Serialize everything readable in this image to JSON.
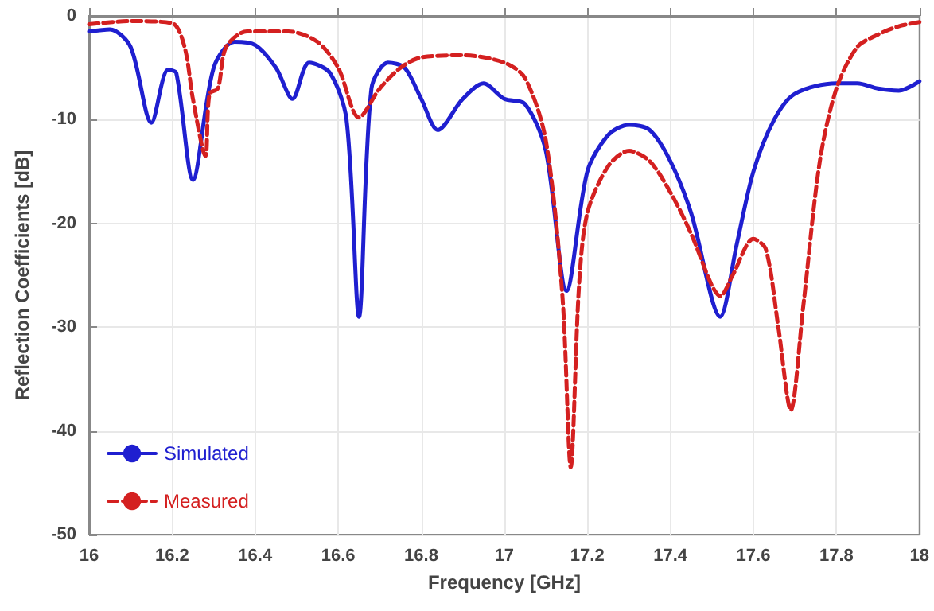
{
  "chart_data": {
    "type": "line",
    "xlabel": "Frequency [GHz]",
    "ylabel": "Reflection Coefficients [dB]",
    "xlim": [
      16,
      18
    ],
    "xticks": [
      16,
      16.2,
      16.4,
      16.6,
      16.8,
      17,
      17.2,
      17.4,
      17.6,
      17.8,
      18
    ],
    "ylim": [
      -50,
      0
    ],
    "yticks": [
      -50,
      -40,
      -30,
      -20,
      -10,
      0
    ],
    "grid": true,
    "legend": "bottom left",
    "marker": "none",
    "series": [
      {
        "name": "Simulated",
        "color": "#1f1fd0",
        "line_style": "solid",
        "x": [
          16.0,
          16.05,
          16.1,
          16.15,
          16.19,
          16.21,
          16.25,
          16.3,
          16.35,
          16.4,
          16.45,
          16.49,
          16.53,
          16.58,
          16.62,
          16.65,
          16.68,
          16.72,
          16.76,
          16.8,
          16.84,
          16.9,
          16.95,
          17.0,
          17.05,
          17.1,
          17.15,
          17.2,
          17.25,
          17.3,
          17.35,
          17.4,
          17.45,
          17.52,
          17.56,
          17.6,
          17.65,
          17.7,
          17.8,
          17.85,
          17.9,
          17.95,
          18.0
        ],
        "values": [
          -1.5,
          -1.3,
          -3,
          -10.3,
          -5.2,
          -5.5,
          -15.8,
          -5,
          -2.5,
          -2.8,
          -5,
          -8,
          -4.5,
          -5.5,
          -10,
          -29,
          -7,
          -4.5,
          -5,
          -8,
          -11,
          -8,
          -6.5,
          -8,
          -8.5,
          -13,
          -26.5,
          -15,
          -11.5,
          -10.5,
          -11,
          -14,
          -19,
          -29,
          -22,
          -15,
          -10,
          -7.5,
          -6.5,
          -6.5,
          -7,
          -7.2,
          -6.3
        ]
      },
      {
        "name": "Measured",
        "color": "#d42020",
        "line_style": "dashed",
        "x": [
          16.0,
          16.1,
          16.2,
          16.23,
          16.25,
          16.28,
          16.29,
          16.31,
          16.33,
          16.38,
          16.48,
          16.55,
          16.6,
          16.65,
          16.7,
          16.75,
          16.8,
          16.9,
          17.0,
          17.05,
          17.1,
          17.14,
          17.16,
          17.18,
          17.2,
          17.25,
          17.3,
          17.35,
          17.4,
          17.45,
          17.5,
          17.52,
          17.55,
          17.6,
          17.63,
          17.66,
          17.69,
          17.72,
          17.76,
          17.8,
          17.85,
          17.9,
          17.95,
          18.0
        ],
        "values": [
          -0.8,
          -0.5,
          -0.7,
          -3,
          -8,
          -13.5,
          -7.5,
          -7,
          -3,
          -1.5,
          -1.5,
          -2.5,
          -5,
          -9.8,
          -7,
          -5,
          -4,
          -3.8,
          -4.5,
          -6,
          -12,
          -27,
          -43.5,
          -26,
          -19,
          -14.5,
          -13,
          -14,
          -17,
          -21,
          -26,
          -27,
          -25,
          -21.5,
          -22.5,
          -30,
          -38,
          -28,
          -14,
          -7,
          -3,
          -1.8,
          -1,
          -0.6
        ]
      }
    ]
  }
}
